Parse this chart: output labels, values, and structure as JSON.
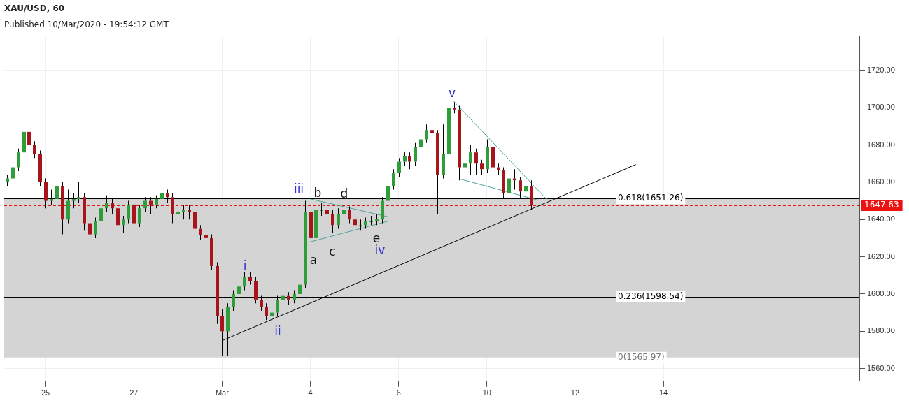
{
  "chart_data": {
    "type": "candlestick",
    "title": "XAU/USD, 60",
    "subtitle": "Published 10/Mar/2020 - 19:54:12 GMT",
    "categories": [
      null,
      null,
      null,
      null,
      null,
      null,
      null,
      "25",
      null,
      null,
      null,
      null,
      null,
      null,
      null,
      null,
      null,
      null,
      null,
      null,
      null,
      null,
      null,
      "27",
      null,
      null,
      null,
      null,
      null,
      null,
      null,
      null,
      null,
      null,
      null,
      null,
      null,
      null,
      null,
      "Mar",
      null,
      null,
      null,
      null,
      null,
      null,
      null,
      null,
      null,
      null,
      null,
      null,
      null,
      null,
      null,
      "4",
      null,
      null,
      null,
      null,
      null,
      null,
      null,
      null,
      null,
      null,
      null,
      null,
      null,
      null,
      null,
      "6",
      null,
      null,
      null,
      null,
      null,
      null,
      null,
      null,
      null,
      null,
      null,
      null,
      null,
      null,
      null,
      "10",
      null,
      null,
      null,
      null,
      null,
      null,
      null,
      null,
      null,
      null,
      null,
      null,
      null,
      null,
      null,
      "12",
      null,
      null,
      null,
      null,
      null,
      null,
      null,
      null,
      null,
      null,
      null,
      null,
      null,
      null,
      null,
      "14",
      null,
      null,
      null,
      null,
      null,
      null,
      null,
      null,
      null,
      null,
      null,
      null,
      null,
      null,
      null,
      null,
      null,
      null,
      null,
      null,
      null,
      null,
      null,
      null,
      null,
      null,
      null,
      null,
      null,
      null,
      null,
      null,
      null,
      null,
      null
    ],
    "ohlc": [
      [
        1660,
        1664,
        1658,
        1662
      ],
      [
        1662,
        1670,
        1660,
        1668
      ],
      [
        1668,
        1678,
        1666,
        1676
      ],
      [
        1676,
        1690,
        1674,
        1687
      ],
      [
        1687,
        1689,
        1678,
        1680
      ],
      [
        1680,
        1682,
        1673,
        1675
      ],
      [
        1675,
        1677,
        1658,
        1660
      ],
      [
        1660,
        1662,
        1646,
        1650
      ],
      [
        1650,
        1656,
        1648,
        1651
      ],
      [
        1651,
        1661,
        1649,
        1658
      ],
      [
        1658,
        1660,
        1632,
        1640
      ],
      [
        1640,
        1656,
        1638,
        1650
      ],
      [
        1650,
        1654,
        1646,
        1651
      ],
      [
        1651,
        1660,
        1649,
        1652
      ],
      [
        1652,
        1654,
        1634,
        1638
      ],
      [
        1638,
        1640,
        1628,
        1632
      ],
      [
        1632,
        1641,
        1630,
        1639
      ],
      [
        1639,
        1648,
        1637,
        1646
      ],
      [
        1646,
        1653,
        1644,
        1649
      ],
      [
        1649,
        1651,
        1643,
        1646
      ],
      [
        1646,
        1648,
        1626,
        1637
      ],
      [
        1637,
        1642,
        1633,
        1640
      ],
      [
        1640,
        1650,
        1638,
        1648
      ],
      [
        1648,
        1650,
        1635,
        1638
      ],
      [
        1638,
        1648,
        1636,
        1646
      ],
      [
        1646,
        1652,
        1644,
        1650
      ],
      [
        1650,
        1652,
        1643,
        1648
      ],
      [
        1648,
        1653,
        1646,
        1651
      ],
      [
        1651,
        1660,
        1649,
        1654
      ],
      [
        1654,
        1656,
        1649,
        1652
      ],
      [
        1652,
        1654,
        1638,
        1643
      ],
      [
        1643,
        1651,
        1639,
        1644
      ],
      [
        1644,
        1648,
        1640,
        1645
      ],
      [
        1645,
        1648,
        1640,
        1644
      ],
      [
        1644,
        1646,
        1631,
        1635
      ],
      [
        1635,
        1637,
        1629,
        1631.5
      ],
      [
        1631.5,
        1634,
        1627,
        1630
      ],
      [
        1630,
        1632,
        1613,
        1615
      ],
      [
        1615,
        1617,
        1584,
        1588
      ],
      [
        1588,
        1592,
        1567,
        1580
      ],
      [
        1580,
        1595,
        1567,
        1593
      ],
      [
        1593,
        1602,
        1591,
        1600
      ],
      [
        1600,
        1606,
        1592,
        1604
      ],
      [
        1604,
        1612,
        1602,
        1609
      ],
      [
        1609,
        1612,
        1605,
        1607
      ],
      [
        1607,
        1609,
        1595,
        1597
      ],
      [
        1597,
        1599,
        1591,
        1593
      ],
      [
        1593,
        1595,
        1586,
        1588
      ],
      [
        1588,
        1592,
        1584,
        1590
      ],
      [
        1590,
        1599,
        1588,
        1597
      ],
      [
        1597,
        1602,
        1595,
        1599
      ],
      [
        1599,
        1601,
        1594,
        1597
      ],
      [
        1597,
        1602,
        1595,
        1600
      ],
      [
        1600,
        1608,
        1598,
        1605
      ],
      [
        1605,
        1650,
        1603,
        1644
      ],
      [
        1644,
        1647,
        1626,
        1630
      ],
      [
        1630,
        1648,
        1628,
        1645
      ],
      [
        1645,
        1649,
        1642,
        1645
      ],
      [
        1645,
        1647,
        1640,
        1643
      ],
      [
        1643,
        1645,
        1633,
        1637
      ],
      [
        1637,
        1646,
        1635,
        1643
      ],
      [
        1643,
        1649,
        1641,
        1645
      ],
      [
        1645,
        1647,
        1638,
        1640
      ],
      [
        1640,
        1642,
        1633,
        1637
      ],
      [
        1637,
        1640,
        1634,
        1637
      ],
      [
        1637,
        1641,
        1635,
        1639
      ],
      [
        1639,
        1642,
        1637,
        1639
      ],
      [
        1639,
        1643,
        1637,
        1640
      ],
      [
        1640,
        1652,
        1638,
        1650
      ],
      [
        1650,
        1660,
        1648,
        1658
      ],
      [
        1658,
        1667,
        1656,
        1665
      ],
      [
        1665,
        1673,
        1663,
        1671
      ],
      [
        1671,
        1676,
        1669,
        1674
      ],
      [
        1674,
        1676,
        1667,
        1671
      ],
      [
        1671,
        1681,
        1669,
        1679
      ],
      [
        1679,
        1686,
        1677,
        1683
      ],
      [
        1683,
        1691,
        1681,
        1688
      ],
      [
        1688,
        1690,
        1684,
        1686.5
      ],
      [
        1686.5,
        1688,
        1643,
        1664
      ],
      [
        1664,
        1691,
        1662,
        1675
      ],
      [
        1675,
        1703,
        1673,
        1700
      ],
      [
        1700,
        1703,
        1697,
        1699
      ],
      [
        1699,
        1701,
        1661,
        1668
      ],
      [
        1668,
        1684,
        1662,
        1670
      ],
      [
        1670,
        1680,
        1664,
        1676
      ],
      [
        1676,
        1678,
        1664,
        1670
      ],
      [
        1670,
        1672,
        1664,
        1667
      ],
      [
        1667,
        1683,
        1665,
        1679
      ],
      [
        1679,
        1681,
        1664,
        1668
      ],
      [
        1668,
        1670,
        1664,
        1666.5
      ],
      [
        1666.5,
        1668,
        1651,
        1654
      ],
      [
        1654,
        1665,
        1652,
        1662
      ],
      [
        1662,
        1667,
        1656,
        1661
      ],
      [
        1661,
        1663,
        1651,
        1655
      ],
      [
        1655,
        1662,
        1652,
        1658
      ],
      [
        1658,
        1661,
        1645,
        1647.63
      ],
      null,
      null,
      null,
      null,
      null,
      null,
      null,
      null,
      null,
      null,
      null,
      null,
      null,
      null,
      null,
      null,
      null,
      null,
      null,
      null,
      null,
      null,
      null,
      null,
      null,
      null,
      null,
      null,
      null,
      null,
      null,
      null,
      null,
      null,
      null,
      null,
      null,
      null,
      null,
      null,
      null,
      null,
      null,
      null,
      null,
      null,
      null,
      null,
      null,
      null,
      null,
      null,
      null,
      null,
      null,
      null,
      null,
      null,
      null
    ],
    "series": [
      {
        "type": "line",
        "color": "#000000",
        "values": [
          null,
          null,
          null,
          null,
          null,
          null,
          null,
          null,
          null,
          null,
          null,
          null,
          null,
          null,
          null,
          null,
          null,
          null,
          null,
          null,
          null,
          null,
          null,
          null,
          null,
          null,
          null,
          null,
          null,
          null,
          null,
          null,
          null,
          null,
          null,
          null,
          null,
          null,
          null,
          1575,
          null,
          null,
          null,
          null,
          null,
          null,
          null,
          null,
          null,
          null,
          null,
          null,
          null,
          null,
          null,
          null,
          null,
          null,
          null,
          null,
          null,
          null,
          null,
          null,
          null,
          null,
          null,
          null,
          null,
          null,
          null,
          null,
          null,
          null,
          null,
          null,
          null,
          null,
          null,
          null,
          null,
          null,
          null,
          null,
          null,
          null,
          null,
          null,
          null,
          null,
          null,
          null,
          null,
          null,
          null,
          null,
          null,
          null,
          null,
          null,
          null,
          null,
          null,
          null,
          null,
          null,
          null,
          null,
          null,
          null,
          null,
          null,
          null,
          null,
          1669.5,
          null,
          null,
          null,
          null,
          null,
          null,
          null,
          null,
          null,
          null,
          null,
          null,
          null,
          null,
          null,
          null,
          null,
          null,
          null,
          null,
          null,
          null,
          null,
          null,
          null,
          null,
          null,
          null,
          null,
          null,
          null,
          null,
          null,
          null,
          null,
          null,
          null,
          null,
          null,
          null
        ]
      },
      {
        "type": "line",
        "color": "#4ea39a",
        "values": [
          null,
          null,
          null,
          null,
          null,
          null,
          null,
          null,
          null,
          null,
          null,
          null,
          null,
          null,
          null,
          null,
          null,
          null,
          null,
          null,
          null,
          null,
          null,
          null,
          null,
          null,
          null,
          null,
          null,
          null,
          null,
          null,
          null,
          null,
          null,
          null,
          null,
          null,
          null,
          null,
          null,
          null,
          null,
          null,
          null,
          null,
          null,
          null,
          null,
          null,
          null,
          null,
          null,
          null,
          null,
          1651,
          null,
          null,
          null,
          null,
          null,
          null,
          null,
          null,
          null,
          null,
          null,
          null,
          null,
          1641.5,
          null,
          null,
          null,
          null,
          null,
          null,
          null,
          null,
          null,
          null,
          null,
          null,
          null,
          null,
          null,
          null,
          null,
          null,
          null,
          null,
          null,
          null,
          null,
          null,
          null,
          null,
          null,
          null,
          null,
          null,
          null,
          null,
          null,
          null,
          null,
          null,
          null,
          null,
          null,
          null,
          null,
          null,
          null,
          null,
          null,
          null,
          null,
          null,
          null,
          null,
          null,
          null,
          null,
          null,
          null,
          null,
          null,
          null,
          null,
          null,
          null,
          null,
          null,
          null,
          null,
          null,
          null,
          null,
          null,
          null,
          null,
          null,
          null,
          null,
          null,
          null,
          null,
          null,
          null,
          null,
          null,
          null,
          null,
          null,
          null
        ]
      },
      {
        "type": "line",
        "color": "#4ea39a",
        "values": [
          null,
          null,
          null,
          null,
          null,
          null,
          null,
          null,
          null,
          null,
          null,
          null,
          null,
          null,
          null,
          null,
          null,
          null,
          null,
          null,
          null,
          null,
          null,
          null,
          null,
          null,
          null,
          null,
          null,
          null,
          null,
          null,
          null,
          null,
          null,
          null,
          null,
          null,
          null,
          null,
          null,
          null,
          null,
          null,
          null,
          null,
          null,
          null,
          null,
          null,
          null,
          null,
          null,
          null,
          null,
          1628,
          null,
          null,
          null,
          null,
          null,
          null,
          null,
          null,
          null,
          null,
          null,
          null,
          null,
          1639,
          null,
          null,
          null,
          null,
          null,
          null,
          null,
          null,
          null,
          null,
          null,
          null,
          null,
          null,
          null,
          null,
          null,
          null,
          null,
          null,
          null,
          null,
          null,
          null,
          null,
          null,
          null,
          null,
          null,
          null,
          null,
          null,
          null,
          null,
          null,
          null,
          null,
          null,
          null,
          null,
          null,
          null,
          null,
          null,
          null,
          null,
          null,
          null,
          null,
          null,
          null,
          null,
          null,
          null,
          null,
          null,
          null,
          null,
          null,
          null,
          null,
          null,
          null,
          null,
          null,
          null,
          null,
          null,
          null,
          null,
          null,
          null,
          null,
          null,
          null,
          null,
          null,
          null,
          null,
          null,
          null,
          null,
          null,
          null,
          null
        ]
      },
      {
        "type": "line",
        "color": "#4ea39a",
        "values": [
          null,
          null,
          null,
          null,
          null,
          null,
          null,
          null,
          null,
          null,
          null,
          null,
          null,
          null,
          null,
          null,
          null,
          null,
          null,
          null,
          null,
          null,
          null,
          null,
          null,
          null,
          null,
          null,
          null,
          null,
          null,
          null,
          null,
          null,
          null,
          null,
          null,
          null,
          null,
          null,
          null,
          null,
          null,
          null,
          null,
          null,
          null,
          null,
          null,
          null,
          null,
          null,
          null,
          null,
          null,
          null,
          null,
          null,
          null,
          null,
          null,
          null,
          null,
          null,
          null,
          null,
          null,
          null,
          null,
          null,
          null,
          null,
          null,
          null,
          null,
          null,
          null,
          null,
          null,
          null,
          null,
          1703.4,
          null,
          null,
          null,
          null,
          null,
          null,
          null,
          null,
          null,
          null,
          null,
          null,
          null,
          null,
          null,
          null,
          1650.3,
          null,
          null,
          null,
          null,
          null,
          null,
          null,
          null,
          null,
          null,
          null,
          null,
          null,
          null,
          null,
          null,
          null,
          null,
          null,
          null,
          null,
          null,
          null,
          null,
          null,
          null,
          null,
          null,
          null,
          null,
          null,
          null,
          null,
          null,
          null,
          null,
          null,
          null,
          null,
          null,
          null,
          null,
          null,
          null,
          null,
          null,
          null,
          null,
          null,
          null,
          null,
          null,
          null,
          null,
          null,
          null
        ]
      },
      {
        "type": "line",
        "color": "#4ea39a",
        "values": [
          null,
          null,
          null,
          null,
          null,
          null,
          null,
          null,
          null,
          null,
          null,
          null,
          null,
          null,
          null,
          null,
          null,
          null,
          null,
          null,
          null,
          null,
          null,
          null,
          null,
          null,
          null,
          null,
          null,
          null,
          null,
          null,
          null,
          null,
          null,
          null,
          null,
          null,
          null,
          null,
          null,
          null,
          null,
          null,
          null,
          null,
          null,
          null,
          null,
          null,
          null,
          null,
          null,
          null,
          null,
          null,
          null,
          null,
          null,
          null,
          null,
          null,
          null,
          null,
          null,
          null,
          null,
          null,
          null,
          null,
          null,
          null,
          null,
          null,
          null,
          null,
          null,
          null,
          null,
          null,
          null,
          null,
          1661.8,
          null,
          null,
          null,
          null,
          null,
          null,
          null,
          null,
          null,
          null,
          null,
          null,
          null,
          1650.6,
          null,
          null,
          null,
          null,
          null,
          null,
          null,
          null,
          null,
          null,
          null,
          null,
          null,
          null,
          null,
          null,
          null,
          null,
          null,
          null,
          null,
          null,
          null,
          null,
          null,
          null,
          null,
          null,
          null,
          null,
          null,
          null,
          null,
          null,
          null,
          null,
          null,
          null,
          null,
          null,
          null,
          null,
          null,
          null,
          null,
          null,
          null,
          null,
          null,
          null,
          null,
          null,
          null,
          null,
          null,
          null,
          null,
          null
        ]
      }
    ],
    "ylim": [
      1553.2,
      1738
    ],
    "yticks": [
      {
        "value": 1560,
        "label": "1560.00"
      },
      {
        "value": 1580,
        "label": "1580.00"
      },
      {
        "value": 1600,
        "label": "1600.00"
      },
      {
        "value": 1620,
        "label": "1620.00"
      },
      {
        "value": 1640,
        "label": "1640.00"
      },
      {
        "value": 1660,
        "label": "1660.00"
      },
      {
        "value": 1680,
        "label": "1680.00"
      },
      {
        "value": 1700,
        "label": "1700.00"
      },
      {
        "value": 1720,
        "label": "1720.00"
      }
    ],
    "ref_lines": [
      {
        "axis": "y",
        "value": 1651.26,
        "label": "0.618(1651.26)",
        "color": "#000000",
        "line_style": "solid"
      },
      {
        "axis": "y",
        "value": 1598.54,
        "label": "0.236(1598.54)",
        "color": "#000000",
        "line_style": "solid"
      },
      {
        "axis": "y",
        "value": 1565.97,
        "label": "0(1565.97)",
        "color": "#777777",
        "line_style": "solid"
      },
      {
        "axis": "y",
        "value": 1647.63,
        "label": "1647.63",
        "color": "#ee1111",
        "line_style": "dashed"
      }
    ],
    "bands": [
      {
        "axis": "y",
        "from": 1565.97,
        "to": 1651.26,
        "color": "#d4d4d4"
      }
    ],
    "annotations": [
      "i",
      "ii",
      "iii",
      "iv",
      "v",
      "a",
      "b",
      "c",
      "d",
      "e"
    ],
    "grid": true,
    "legend": false
  }
}
